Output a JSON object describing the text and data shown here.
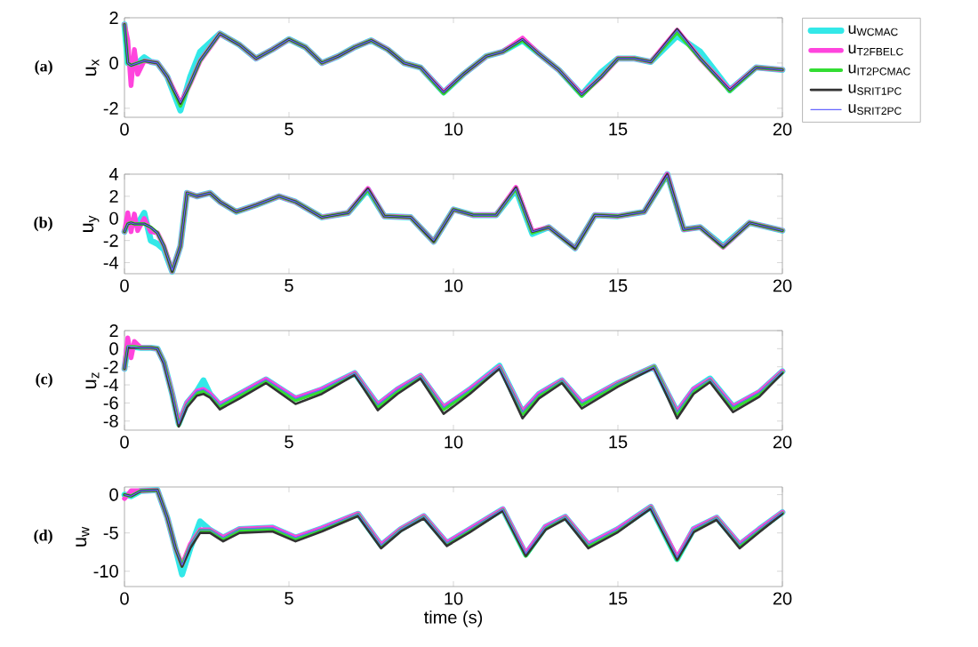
{
  "chart_data": [
    {
      "type": "line",
      "ylabel": "u$_{x}$",
      "annotations": [
        "(a)"
      ],
      "legend": "right",
      "line_style": "solid",
      "xlim": [
        0,
        20
      ],
      "xticks": [
        0,
        5,
        10,
        15,
        20
      ],
      "ylim": [
        -2.4,
        2
      ],
      "yticks": [
        -2,
        0,
        2
      ],
      "x": [
        0,
        0.1,
        0.2,
        0.3,
        0.4,
        0.6,
        0.8,
        1,
        1.3,
        1.7,
        2,
        2.3,
        2.9,
        3.5,
        4,
        4.5,
        5,
        5.5,
        6,
        6.5,
        7,
        7.5,
        8,
        8.5,
        9,
        9.7,
        10.3,
        11,
        11.5,
        12.1,
        12.6,
        13.2,
        13.9,
        14.5,
        15,
        15.5,
        16,
        16.8,
        17.5,
        18.4,
        19.2,
        20
      ],
      "series": [
        {
          "name": "u$_{WCMAC}$",
          "color": "#33e8e8",
          "values": [
            1.7,
            0,
            -0.1,
            -0.05,
            0,
            0.25,
            0.05,
            0,
            -0.6,
            -2.1,
            -0.6,
            0.5,
            1.3,
            0.8,
            0.2,
            0.6,
            1.05,
            0.7,
            0.0,
            0.3,
            0.7,
            1.0,
            0.6,
            0.0,
            -0.2,
            -1.3,
            -0.5,
            0.3,
            0.5,
            1.0,
            0.4,
            -0.3,
            -1.4,
            -0.4,
            0.2,
            0.2,
            0.05,
            1.2,
            0.5,
            -1.2,
            -0.2,
            -0.3
          ]
        },
        {
          "name": "u$_{T2FBELC}$",
          "color": "#ff44dd",
          "values": [
            1.7,
            1.0,
            -1.0,
            0.6,
            -0.5,
            0.1,
            0.05,
            0,
            -0.6,
            -1.8,
            -0.9,
            0.1,
            1.3,
            0.8,
            0.2,
            0.6,
            1.05,
            0.7,
            0.0,
            0.3,
            0.7,
            1.0,
            0.6,
            0.0,
            -0.2,
            -1.3,
            -0.5,
            0.3,
            0.5,
            1.1,
            0.4,
            -0.3,
            -1.4,
            -0.6,
            0.2,
            0.2,
            0.05,
            1.45,
            0.2,
            -1.2,
            -0.2,
            -0.3
          ]
        },
        {
          "name": "u$_{IT2PCMAC}$",
          "color": "#33dd33",
          "values": [
            1.7,
            0,
            -0.1,
            -0.05,
            0,
            0.1,
            0.05,
            0,
            -0.6,
            -1.9,
            -0.9,
            0.1,
            1.3,
            0.8,
            0.2,
            0.6,
            1.05,
            0.7,
            0.0,
            0.3,
            0.7,
            1.0,
            0.6,
            0.0,
            -0.2,
            -1.35,
            -0.5,
            0.3,
            0.5,
            1.0,
            0.4,
            -0.3,
            -1.45,
            -0.6,
            0.2,
            0.2,
            0.05,
            1.35,
            0.2,
            -1.25,
            -0.2,
            -0.3
          ]
        },
        {
          "name": "u$_{SRIT1PC}$",
          "color": "#333333",
          "values": [
            1.7,
            0,
            -0.1,
            -0.05,
            0,
            0.1,
            0.05,
            0,
            -0.6,
            -1.8,
            -0.9,
            0.1,
            1.3,
            0.8,
            0.2,
            0.6,
            1.05,
            0.7,
            0.0,
            0.3,
            0.7,
            1.0,
            0.6,
            0.0,
            -0.2,
            -1.3,
            -0.5,
            0.3,
            0.5,
            1.05,
            0.4,
            -0.3,
            -1.4,
            -0.6,
            0.2,
            0.2,
            0.05,
            1.5,
            0.2,
            -1.2,
            -0.2,
            -0.3
          ]
        },
        {
          "name": "u$_{SRIT2PC}$",
          "color": "#6666ff",
          "values": [
            1.7,
            0,
            -0.1,
            -0.05,
            0,
            0.1,
            0.05,
            0,
            -0.6,
            -1.75,
            -0.9,
            0.1,
            1.3,
            0.8,
            0.2,
            0.6,
            1.05,
            0.7,
            0.0,
            0.3,
            0.7,
            1.0,
            0.6,
            0.0,
            -0.2,
            -1.3,
            -0.5,
            0.3,
            0.5,
            1.05,
            0.4,
            -0.3,
            -1.4,
            -0.6,
            0.2,
            0.2,
            0.05,
            1.45,
            0.2,
            -1.2,
            -0.2,
            -0.3
          ]
        }
      ]
    },
    {
      "type": "line",
      "ylabel": "u$_{y}$",
      "annotations": [
        "(b)"
      ],
      "line_style": "solid",
      "xlim": [
        0,
        20
      ],
      "xticks": [
        0,
        5,
        10,
        15,
        20
      ],
      "ylim": [
        -5,
        4
      ],
      "yticks": [
        -4,
        -2,
        0,
        2,
        4
      ],
      "x": [
        0,
        0.1,
        0.2,
        0.3,
        0.4,
        0.6,
        0.8,
        1,
        1.2,
        1.45,
        1.7,
        1.9,
        2.2,
        2.6,
        2.9,
        3.4,
        4,
        4.7,
        5.2,
        6,
        6.8,
        7.4,
        7.9,
        8.7,
        9.4,
        10,
        10.6,
        11.3,
        11.9,
        12.4,
        12.9,
        13.7,
        14.3,
        15,
        15.8,
        16.5,
        17,
        17.5,
        18.2,
        19,
        20
      ],
      "series": [
        {
          "color": "#33e8e8",
          "values": [
            -1.2,
            -0.5,
            -0.4,
            -0.5,
            -0.5,
            0.5,
            -2.0,
            -2.3,
            -2.8,
            -4.8,
            -2.5,
            2.3,
            2.0,
            2.3,
            1.5,
            0.6,
            1.2,
            2.0,
            1.5,
            0.1,
            0.5,
            2.6,
            0.2,
            0.1,
            -2.1,
            0.8,
            0.3,
            0.3,
            2.6,
            -1.4,
            -0.8,
            -2.7,
            0.3,
            0.2,
            0.6,
            4.0,
            -1.0,
            -0.8,
            -2.5,
            -0.4,
            -1.1
          ]
        },
        {
          "color": "#ff44dd",
          "values": [
            -1.2,
            0.5,
            -1.2,
            0.4,
            -1.1,
            0.0,
            -1.2,
            -1.3,
            -2.5,
            -4.8,
            -2.5,
            2.3,
            2.0,
            2.3,
            1.5,
            0.6,
            1.2,
            2.0,
            1.5,
            0.1,
            0.5,
            2.7,
            0.2,
            0.1,
            -2.1,
            0.8,
            0.3,
            0.3,
            2.8,
            -1.2,
            -0.8,
            -2.7,
            0.3,
            0.2,
            0.6,
            4.0,
            -1.0,
            -0.8,
            -2.6,
            -0.4,
            -1.1
          ]
        },
        {
          "color": "#33dd33",
          "values": [
            -1.2,
            -0.5,
            -0.4,
            -0.5,
            -0.5,
            -0.5,
            -0.8,
            -1.3,
            -2.5,
            -4.8,
            -2.5,
            2.3,
            2.0,
            2.3,
            1.5,
            0.6,
            1.2,
            2.0,
            1.5,
            0.1,
            0.5,
            2.6,
            0.2,
            0.1,
            -2.1,
            0.8,
            0.3,
            0.3,
            2.7,
            -1.3,
            -0.8,
            -2.7,
            0.3,
            0.2,
            0.6,
            3.9,
            -1.0,
            -0.8,
            -2.6,
            -0.4,
            -1.1
          ]
        },
        {
          "color": "#333333",
          "values": [
            -1.2,
            -0.5,
            -0.4,
            -0.5,
            -0.5,
            -0.5,
            -0.8,
            -1.3,
            -2.5,
            -4.8,
            -2.5,
            2.3,
            2.0,
            2.3,
            1.5,
            0.6,
            1.2,
            2.0,
            1.5,
            0.1,
            0.5,
            2.7,
            0.2,
            0.1,
            -2.1,
            0.8,
            0.3,
            0.3,
            2.8,
            -1.2,
            -0.8,
            -2.7,
            0.3,
            0.2,
            0.6,
            4.0,
            -1.0,
            -0.8,
            -2.6,
            -0.4,
            -1.1
          ]
        },
        {
          "color": "#6666ff",
          "values": [
            -1.2,
            -0.5,
            -0.4,
            -0.5,
            -0.5,
            -0.5,
            -0.8,
            -1.3,
            -2.5,
            -4.7,
            -2.5,
            2.3,
            2.0,
            2.3,
            1.5,
            0.6,
            1.2,
            2.0,
            1.5,
            0.1,
            0.5,
            2.6,
            0.2,
            0.1,
            -2.0,
            0.8,
            0.3,
            0.3,
            2.7,
            -1.2,
            -0.8,
            -2.6,
            0.3,
            0.2,
            0.6,
            3.9,
            -1.0,
            -0.8,
            -2.5,
            -0.4,
            -1.1
          ]
        }
      ]
    },
    {
      "type": "line",
      "ylabel": "u$_{z}$",
      "annotations": [
        "(c)"
      ],
      "line_style": "solid",
      "xlim": [
        0,
        20
      ],
      "xticks": [
        0,
        5,
        10,
        15,
        20
      ],
      "ylim": [
        -9,
        2
      ],
      "yticks": [
        -8,
        -6,
        -4,
        -2,
        0,
        2
      ],
      "x": [
        0,
        0.1,
        0.2,
        0.3,
        0.5,
        0.8,
        1,
        1.2,
        1.45,
        1.65,
        1.9,
        2.2,
        2.4,
        2.6,
        2.9,
        3.5,
        4.3,
        5.2,
        6,
        7,
        7.7,
        8.3,
        9,
        9.7,
        10.5,
        11.4,
        12.1,
        12.6,
        13.3,
        13.9,
        15,
        16.1,
        16.8,
        17.3,
        17.8,
        18.5,
        19.3,
        20
      ],
      "series": [
        {
          "color": "#33e8e8",
          "values": [
            -2.2,
            0.3,
            0.2,
            0.2,
            0.1,
            0.1,
            0.0,
            -1.5,
            -5,
            -8.3,
            -6,
            -4.7,
            -3.5,
            -5,
            -6.2,
            -5,
            -3.4,
            -5.5,
            -4.5,
            -2.7,
            -6.2,
            -4.5,
            -3,
            -6.5,
            -4.5,
            -1.9,
            -7,
            -5,
            -3.5,
            -6,
            -3.8,
            -2.0,
            -7.0,
            -4.5,
            -3.3,
            -6.4,
            -4.8,
            -2.5
          ]
        },
        {
          "color": "#ff44dd",
          "values": [
            -2.2,
            1.2,
            -1.0,
            0.8,
            0.1,
            0.1,
            0.0,
            -1.5,
            -5,
            -8.3,
            -6,
            -4.7,
            -4.5,
            -5,
            -6.2,
            -5,
            -3.4,
            -5.5,
            -4.5,
            -2.7,
            -6.2,
            -4.5,
            -3,
            -6.5,
            -4.5,
            -2.0,
            -7,
            -5,
            -3.5,
            -6,
            -3.8,
            -2.0,
            -7.0,
            -4.5,
            -3.4,
            -6.4,
            -4.8,
            -2.5
          ]
        },
        {
          "color": "#33dd33",
          "values": [
            -2.2,
            0.2,
            0.2,
            0.2,
            0.1,
            0.1,
            0.0,
            -1.5,
            -5.1,
            -8.5,
            -6.2,
            -4.9,
            -4.7,
            -5.2,
            -6.4,
            -5.2,
            -3.6,
            -5.7,
            -4.7,
            -2.8,
            -6.4,
            -4.7,
            -3.1,
            -6.7,
            -4.7,
            -2.1,
            -7.2,
            -5.2,
            -3.6,
            -6.2,
            -3.9,
            -2.0,
            -7.2,
            -4.7,
            -3.5,
            -6.6,
            -5,
            -2.6
          ]
        },
        {
          "color": "#333333",
          "values": [
            -2.2,
            0.1,
            0.1,
            0.1,
            0.1,
            0.1,
            0.0,
            -1.6,
            -5.2,
            -8.6,
            -6.5,
            -5.2,
            -5.0,
            -5.4,
            -6.7,
            -5.5,
            -3.8,
            -6.1,
            -5,
            -2.9,
            -6.8,
            -5,
            -3.3,
            -7.2,
            -5,
            -2.2,
            -7.7,
            -5.5,
            -3.8,
            -6.6,
            -4.2,
            -2.1,
            -7.7,
            -5,
            -3.7,
            -7,
            -5.3,
            -2.7
          ]
        },
        {
          "color": "#6666ff",
          "values": [
            -2.2,
            0.3,
            0.2,
            0.2,
            0.1,
            0.1,
            0.0,
            -1.5,
            -5,
            -8.3,
            -6,
            -4.7,
            -4.5,
            -5,
            -6.2,
            -5,
            -3.4,
            -5.5,
            -4.5,
            -2.7,
            -6.2,
            -4.5,
            -3,
            -6.5,
            -4.5,
            -2.0,
            -7,
            -5,
            -3.5,
            -6,
            -3.8,
            -2.0,
            -7.0,
            -4.5,
            -3.4,
            -6.4,
            -4.8,
            -2.5
          ]
        }
      ]
    },
    {
      "type": "line",
      "xlabel": "time (s)",
      "ylabel": "u$_{w}$",
      "annotations": [
        "(d)"
      ],
      "line_style": "solid",
      "xlim": [
        0,
        20
      ],
      "xticks": [
        0,
        5,
        10,
        15,
        20
      ],
      "ylim": [
        -12,
        1
      ],
      "yticks": [
        -10,
        -5,
        0
      ],
      "x": [
        0,
        0.2,
        0.5,
        1,
        1.3,
        1.55,
        1.75,
        2,
        2.3,
        2.6,
        3,
        3.5,
        4.5,
        5.2,
        6,
        7.1,
        7.8,
        8.4,
        9.1,
        9.8,
        10.5,
        11.5,
        12.2,
        12.8,
        13.4,
        14.1,
        15,
        16,
        16.8,
        17.3,
        18,
        18.7,
        19.3,
        20
      ],
      "series": [
        {
          "color": "#33e8e8",
          "values": [
            0,
            -0.2,
            0.5,
            0.6,
            -3,
            -7,
            -10.4,
            -7,
            -3.5,
            -4.6,
            -5.6,
            -4.5,
            -4.3,
            -5.6,
            -4.4,
            -2.5,
            -6.6,
            -4.5,
            -2.8,
            -6.3,
            -4.5,
            -1.9,
            -7.8,
            -4.2,
            -2.9,
            -6.5,
            -4.5,
            -1.6,
            -8.4,
            -4.5,
            -3,
            -6.5,
            -4.5,
            -2.3
          ]
        },
        {
          "color": "#ff44dd",
          "values": [
            -0.5,
            0.5,
            0.5,
            0.6,
            -3,
            -7,
            -9.2,
            -6.5,
            -4.6,
            -4.6,
            -5.6,
            -4.5,
            -4.3,
            -5.6,
            -4.4,
            -2.5,
            -6.6,
            -4.5,
            -2.8,
            -6.3,
            -4.5,
            -1.9,
            -7.7,
            -4.2,
            -2.9,
            -6.5,
            -4.5,
            -1.6,
            -8.2,
            -4.5,
            -3,
            -6.5,
            -4.5,
            -2.3
          ]
        },
        {
          "color": "#33dd33",
          "values": [
            0,
            -0.2,
            0.5,
            0.6,
            -3,
            -7,
            -9.3,
            -6.7,
            -4.7,
            -4.7,
            -5.8,
            -4.6,
            -4.5,
            -5.8,
            -4.6,
            -2.6,
            -6.8,
            -4.6,
            -2.9,
            -6.5,
            -4.7,
            -2.0,
            -8.0,
            -4.4,
            -3.0,
            -6.7,
            -4.7,
            -1.7,
            -8.5,
            -4.7,
            -3.1,
            -6.7,
            -4.7,
            -2.4
          ]
        },
        {
          "color": "#333333",
          "values": [
            0,
            -0.2,
            0.5,
            0.6,
            -3,
            -7,
            -9.4,
            -7,
            -5,
            -5,
            -6.1,
            -5,
            -4.8,
            -6.1,
            -4.8,
            -2.8,
            -7,
            -4.8,
            -3.1,
            -6.7,
            -4.9,
            -2.1,
            -8,
            -4.6,
            -3.2,
            -7,
            -4.9,
            -1.8,
            -8.5,
            -4.9,
            -3.3,
            -7,
            -4.9,
            -2.5
          ]
        },
        {
          "color": "#6666ff",
          "values": [
            0,
            -0.2,
            0.5,
            0.6,
            -3,
            -7,
            -9.2,
            -6.5,
            -4.6,
            -4.6,
            -5.6,
            -4.5,
            -4.3,
            -5.6,
            -4.4,
            -2.5,
            -6.6,
            -4.5,
            -2.8,
            -6.3,
            -4.5,
            -1.9,
            -7.7,
            -4.2,
            -2.9,
            -6.5,
            -4.5,
            -1.6,
            -8.2,
            -4.5,
            -3,
            -6.5,
            -4.5,
            -2.3
          ]
        }
      ]
    }
  ]
}
